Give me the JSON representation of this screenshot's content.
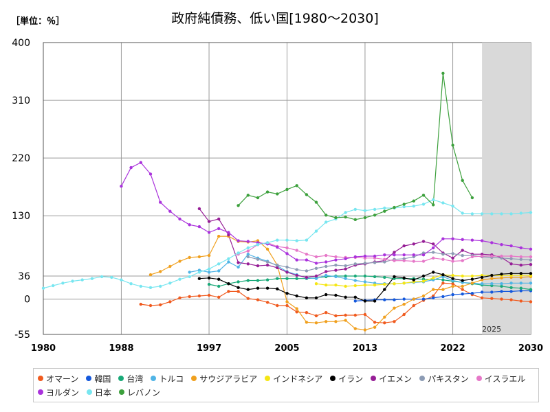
{
  "unit_label": "［単位：％］",
  "chart_data": {
    "type": "line",
    "title": "政府純債務、低い国[1980～2030]",
    "xlabel": "",
    "ylabel": "",
    "xlim": [
      1980,
      2030
    ],
    "ylim": [
      -55,
      400
    ],
    "x_ticks": [
      1980,
      1988,
      1997,
      2005,
      2013,
      2022,
      2030
    ],
    "y_ticks": [
      -55,
      0,
      36,
      130,
      220,
      310,
      400
    ],
    "forecast_start": 2025,
    "forecast_label": "2025",
    "grid": true,
    "legend_position": "bottom",
    "series": [
      {
        "name": "オマーン",
        "color": "#f05a1e",
        "x": [
          1990,
          1991,
          1992,
          1993,
          1994,
          1995,
          1996,
          1997,
          1998,
          1999,
          2000,
          2001,
          2002,
          2003,
          2004,
          2005,
          2006,
          2007,
          2008,
          2009,
          2010,
          2011,
          2012,
          2013,
          2014,
          2015,
          2016,
          2017,
          2018,
          2019,
          2020,
          2021,
          2022,
          2023,
          2024,
          2025,
          2026,
          2027,
          2028,
          2029,
          2030
        ],
        "y": [
          -8,
          -10,
          -9,
          -4,
          2,
          4,
          5,
          6,
          3,
          12,
          12,
          1,
          -1,
          -5,
          -10,
          -10,
          -20,
          -21,
          -26,
          -21,
          -26,
          -25,
          -25,
          -24,
          -36,
          -37,
          -35,
          -24,
          -10,
          -2,
          5,
          25,
          24,
          15,
          7,
          2,
          1,
          0,
          -1,
          -3,
          -4
        ]
      },
      {
        "name": "韓国",
        "color": "#1458dc",
        "x": [
          2012,
          2013,
          2014,
          2015,
          2016,
          2017,
          2018,
          2019,
          2020,
          2021,
          2022,
          2023,
          2024,
          2025,
          2026,
          2027,
          2028,
          2029,
          2030
        ],
        "y": [
          -3,
          -2,
          -1,
          -1,
          -1,
          0,
          0,
          0,
          2,
          4,
          7,
          8,
          9,
          11,
          11,
          12,
          12,
          13,
          13
        ]
      },
      {
        "name": "台湾",
        "color": "#19a978",
        "x": [
          1997,
          1998,
          1999,
          2000,
          2001,
          2002,
          2003,
          2004,
          2005,
          2006,
          2007,
          2008,
          2009,
          2010,
          2011,
          2012,
          2013,
          2014,
          2015,
          2016,
          2017,
          2018,
          2019,
          2020,
          2021,
          2022,
          2023,
          2024,
          2025,
          2026,
          2027,
          2028,
          2029,
          2030
        ],
        "y": [
          23,
          20,
          24,
          27,
          29,
          29,
          30,
          32,
          32,
          32,
          32,
          33,
          35,
          36,
          36,
          36,
          36,
          35,
          34,
          32,
          32,
          32,
          31,
          31,
          30,
          28,
          26,
          24,
          22,
          21,
          20,
          18,
          17,
          15
        ]
      },
      {
        "name": "トルコ",
        "color": "#50b4e6",
        "x": [
          1995,
          1996,
          1997,
          1998,
          1999,
          2000,
          2001,
          2002,
          2003,
          2004,
          2005,
          2006,
          2007,
          2008,
          2009,
          2010,
          2011,
          2012,
          2013,
          2014,
          2015,
          2016,
          2017,
          2018,
          2019,
          2020,
          2021,
          2022,
          2023,
          2024,
          2025,
          2026,
          2027,
          2028,
          2029,
          2030
        ],
        "y": [
          42,
          45,
          42,
          44,
          58,
          50,
          70,
          64,
          59,
          52,
          43,
          38,
          33,
          32,
          37,
          35,
          32,
          29,
          27,
          25,
          24,
          24,
          25,
          26,
          27,
          30,
          35,
          29,
          26,
          25,
          24,
          24,
          24,
          25,
          25,
          25
        ]
      },
      {
        "name": "サウジアラビア",
        "color": "#f0a01e",
        "x": [
          1991,
          1992,
          1993,
          1994,
          1995,
          1996,
          1997,
          1998,
          1999,
          2000,
          2001,
          2002,
          2003,
          2004,
          2005,
          2006,
          2007,
          2008,
          2009,
          2010,
          2011,
          2012,
          2013,
          2014,
          2015,
          2016,
          2017,
          2018,
          2019,
          2020,
          2021,
          2022,
          2023,
          2024,
          2025,
          2026,
          2027,
          2028,
          2029,
          2030
        ],
        "y": [
          38,
          43,
          51,
          59,
          65,
          66,
          68,
          98,
          98,
          90,
          89,
          91,
          78,
          53,
          -4,
          -15,
          -36,
          -37,
          -35,
          -35,
          -33,
          -46,
          -48,
          -44,
          -28,
          -14,
          -8,
          0,
          5,
          15,
          15,
          20,
          20,
          25,
          30,
          32,
          33,
          34,
          34,
          35
        ]
      },
      {
        "name": "インドネシア",
        "color": "#f5e614",
        "x": [
          2008,
          2009,
          2010,
          2011,
          2012,
          2013,
          2014,
          2015,
          2016,
          2017,
          2018,
          2019,
          2020,
          2021,
          2022,
          2023,
          2024,
          2025,
          2026,
          2027,
          2028,
          2029,
          2030
        ],
        "y": [
          24,
          22,
          22,
          20,
          21,
          22,
          22,
          23,
          24,
          25,
          27,
          28,
          33,
          38,
          37,
          36,
          36,
          37,
          37,
          37,
          37,
          37,
          37
        ]
      },
      {
        "name": "イラン",
        "color": "#000000",
        "x": [
          1996,
          1997,
          1998,
          1999,
          2000,
          2001,
          2002,
          2003,
          2004,
          2005,
          2006,
          2007,
          2008,
          2009,
          2010,
          2011,
          2012,
          2013,
          2014,
          2015,
          2016,
          2017,
          2018,
          2019,
          2020,
          2021,
          2022,
          2023,
          2024,
          2025,
          2026,
          2027,
          2028,
          2029,
          2030
        ],
        "y": [
          32,
          33,
          31,
          24,
          18,
          15,
          17,
          17,
          16,
          9,
          5,
          2,
          2,
          7,
          6,
          3,
          3,
          -3,
          -3,
          15,
          35,
          33,
          30,
          36,
          42,
          38,
          32,
          29,
          31,
          34,
          37,
          39,
          40,
          40,
          40
        ]
      },
      {
        "name": "イエメン",
        "color": "#961e96",
        "x": [
          1996,
          1997,
          1998,
          1999,
          2000,
          2001,
          2002,
          2003,
          2004,
          2005,
          2006,
          2007,
          2008,
          2009,
          2010,
          2011,
          2012,
          2013,
          2014,
          2015,
          2016,
          2017,
          2018,
          2019,
          2020,
          2021,
          2022,
          2023,
          2024,
          2025,
          2026,
          2027,
          2028,
          2029,
          2030
        ],
        "y": [
          141,
          121,
          125,
          100,
          57,
          55,
          52,
          53,
          49,
          42,
          37,
          34,
          36,
          43,
          45,
          47,
          53,
          55,
          58,
          60,
          73,
          83,
          86,
          90,
          86,
          72,
          64,
          76,
          70,
          70,
          69,
          65,
          55,
          53,
          54
        ]
      },
      {
        "name": "パキスタン",
        "color": "#8c9bb4",
        "x": [
          2001,
          2002,
          2003,
          2004,
          2005,
          2006,
          2007,
          2008,
          2009,
          2010,
          2011,
          2012,
          2013,
          2014,
          2015,
          2016,
          2017,
          2018,
          2019,
          2020,
          2021,
          2022,
          2023,
          2024,
          2025,
          2026,
          2027,
          2028,
          2029,
          2030
        ],
        "y": [
          66,
          62,
          58,
          53,
          50,
          46,
          44,
          48,
          51,
          53,
          52,
          55,
          56,
          57,
          58,
          62,
          63,
          66,
          72,
          73,
          70,
          71,
          68,
          68,
          66,
          65,
          64,
          63,
          62,
          61
        ]
      },
      {
        "name": "イスラエル",
        "color": "#e678c8",
        "x": [
          2000,
          2001,
          2002,
          2003,
          2004,
          2005,
          2006,
          2007,
          2008,
          2009,
          2010,
          2011,
          2012,
          2013,
          2014,
          2015,
          2016,
          2017,
          2018,
          2019,
          2020,
          2021,
          2022,
          2023,
          2024,
          2025,
          2026,
          2027,
          2028,
          2029,
          2030
        ],
        "y": [
          70,
          75,
          85,
          88,
          82,
          80,
          76,
          70,
          66,
          68,
          66,
          65,
          65,
          64,
          64,
          62,
          60,
          60,
          59,
          59,
          64,
          62,
          59,
          60,
          66,
          67,
          67,
          67,
          67,
          66,
          66
        ]
      },
      {
        "name": "ヨルダン",
        "color": "#aa32dc",
        "x": [
          1988,
          1989,
          1990,
          1991,
          1992,
          1993,
          1994,
          1995,
          1996,
          1997,
          1998,
          1999,
          2000,
          2001,
          2002,
          2003,
          2004,
          2005,
          2006,
          2007,
          2008,
          2009,
          2010,
          2011,
          2012,
          2013,
          2014,
          2015,
          2016,
          2017,
          2018,
          2019,
          2020,
          2021,
          2022,
          2023,
          2024,
          2025,
          2026,
          2027,
          2028,
          2029,
          2030
        ],
        "y": [
          176,
          205,
          213,
          195,
          151,
          137,
          125,
          116,
          113,
          104,
          110,
          104,
          91,
          90,
          88,
          86,
          81,
          71,
          61,
          61,
          56,
          58,
          61,
          63,
          66,
          67,
          67,
          69,
          69,
          69,
          69,
          69,
          80,
          94,
          94,
          93,
          92,
          91,
          88,
          85,
          83,
          80,
          78
        ]
      },
      {
        "name": "日本",
        "color": "#78e6f0",
        "x": [
          1980,
          1981,
          1982,
          1983,
          1984,
          1985,
          1986,
          1987,
          1988,
          1989,
          1990,
          1991,
          1992,
          1993,
          1994,
          1995,
          1996,
          1997,
          1998,
          1999,
          2000,
          2001,
          2002,
          2003,
          2004,
          2005,
          2006,
          2007,
          2008,
          2009,
          2010,
          2011,
          2012,
          2013,
          2014,
          2015,
          2016,
          2017,
          2018,
          2019,
          2020,
          2021,
          2022,
          2023,
          2024,
          2025,
          2026,
          2027,
          2028,
          2029,
          2030
        ],
        "y": [
          17,
          21,
          25,
          28,
          30,
          32,
          35,
          34,
          30,
          24,
          20,
          18,
          20,
          25,
          31,
          35,
          42,
          47,
          55,
          63,
          72,
          80,
          85,
          88,
          92,
          92,
          91,
          92,
          106,
          120,
          125,
          135,
          140,
          138,
          140,
          142,
          142,
          144,
          145,
          148,
          155,
          150,
          145,
          134,
          133,
          133,
          133,
          133,
          133,
          134,
          135
        ]
      },
      {
        "name": "レバノン",
        "color": "#3ca03c",
        "x": [
          2000,
          2001,
          2002,
          2003,
          2004,
          2005,
          2006,
          2007,
          2008,
          2009,
          2010,
          2011,
          2012,
          2013,
          2014,
          2015,
          2016,
          2017,
          2018,
          2019,
          2020,
          2021,
          2022,
          2023,
          2024
        ],
        "y": [
          146,
          162,
          158,
          167,
          164,
          171,
          177,
          163,
          151,
          131,
          127,
          128,
          124,
          127,
          131,
          137,
          143,
          148,
          153,
          162,
          147,
          352,
          240,
          185,
          158
        ]
      }
    ]
  }
}
